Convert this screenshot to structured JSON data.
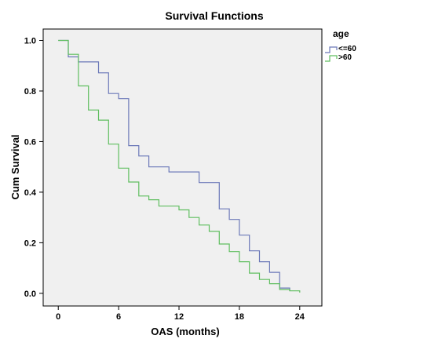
{
  "chart_data": {
    "type": "line",
    "step": true,
    "title": "Survival Functions",
    "xlabel": "OAS (months)",
    "ylabel": "Cum Survival",
    "xlim": [
      -1.5,
      26.2
    ],
    "ylim": [
      -0.05,
      1.045
    ],
    "xticks": [
      0,
      6,
      12,
      18,
      24
    ],
    "yticks": [
      0.0,
      0.2,
      0.4,
      0.6,
      0.8,
      1.0
    ],
    "ytick_labels": [
      "0.0",
      "0.2",
      "0.4",
      "0.6",
      "0.8",
      "1.0"
    ],
    "grid": false,
    "background": "#f0f0f0",
    "legend": {
      "title": "age",
      "position": "right"
    },
    "series": [
      {
        "name": "<=60",
        "color": "#6b78b8",
        "points": [
          [
            0,
            1.0
          ],
          [
            1,
            1.0
          ],
          [
            1,
            0.935
          ],
          [
            2,
            0.935
          ],
          [
            2,
            0.915
          ],
          [
            4,
            0.915
          ],
          [
            4,
            0.872
          ],
          [
            5,
            0.872
          ],
          [
            5,
            0.79
          ],
          [
            6,
            0.79
          ],
          [
            6,
            0.77
          ],
          [
            7,
            0.77
          ],
          [
            7,
            0.584
          ],
          [
            8,
            0.584
          ],
          [
            8,
            0.543
          ],
          [
            9,
            0.543
          ],
          [
            9,
            0.5
          ],
          [
            11,
            0.5
          ],
          [
            11,
            0.48
          ],
          [
            14,
            0.48
          ],
          [
            14,
            0.438
          ],
          [
            16,
            0.438
          ],
          [
            16,
            0.334
          ],
          [
            17,
            0.334
          ],
          [
            17,
            0.292
          ],
          [
            18,
            0.292
          ],
          [
            18,
            0.23
          ],
          [
            19,
            0.23
          ],
          [
            19,
            0.168
          ],
          [
            20,
            0.168
          ],
          [
            20,
            0.125
          ],
          [
            21,
            0.125
          ],
          [
            21,
            0.083
          ],
          [
            22,
            0.083
          ],
          [
            22,
            0.021
          ],
          [
            23,
            0.021
          ],
          [
            23,
            0.01
          ]
        ]
      },
      {
        "name": ">60",
        "color": "#5fbe5f",
        "points": [
          [
            0,
            1.0
          ],
          [
            1,
            1.0
          ],
          [
            1,
            0.945
          ],
          [
            2,
            0.945
          ],
          [
            2,
            0.82
          ],
          [
            3,
            0.82
          ],
          [
            3,
            0.725
          ],
          [
            4,
            0.725
          ],
          [
            4,
            0.685
          ],
          [
            5,
            0.685
          ],
          [
            5,
            0.59
          ],
          [
            6,
            0.59
          ],
          [
            6,
            0.495
          ],
          [
            7,
            0.495
          ],
          [
            7,
            0.44
          ],
          [
            8,
            0.44
          ],
          [
            8,
            0.385
          ],
          [
            9,
            0.385
          ],
          [
            9,
            0.37
          ],
          [
            10,
            0.37
          ],
          [
            10,
            0.345
          ],
          [
            12,
            0.345
          ],
          [
            12,
            0.33
          ],
          [
            13,
            0.33
          ],
          [
            13,
            0.3
          ],
          [
            14,
            0.3
          ],
          [
            14,
            0.27
          ],
          [
            15,
            0.27
          ],
          [
            15,
            0.245
          ],
          [
            16,
            0.245
          ],
          [
            16,
            0.195
          ],
          [
            17,
            0.195
          ],
          [
            17,
            0.165
          ],
          [
            18,
            0.165
          ],
          [
            18,
            0.125
          ],
          [
            19,
            0.125
          ],
          [
            19,
            0.08
          ],
          [
            20,
            0.08
          ],
          [
            20,
            0.055
          ],
          [
            21,
            0.055
          ],
          [
            21,
            0.038
          ],
          [
            22,
            0.038
          ],
          [
            22,
            0.015
          ],
          [
            23,
            0.015
          ],
          [
            23,
            0.01
          ],
          [
            24,
            0.01
          ],
          [
            24,
            0.003
          ]
        ]
      }
    ]
  }
}
